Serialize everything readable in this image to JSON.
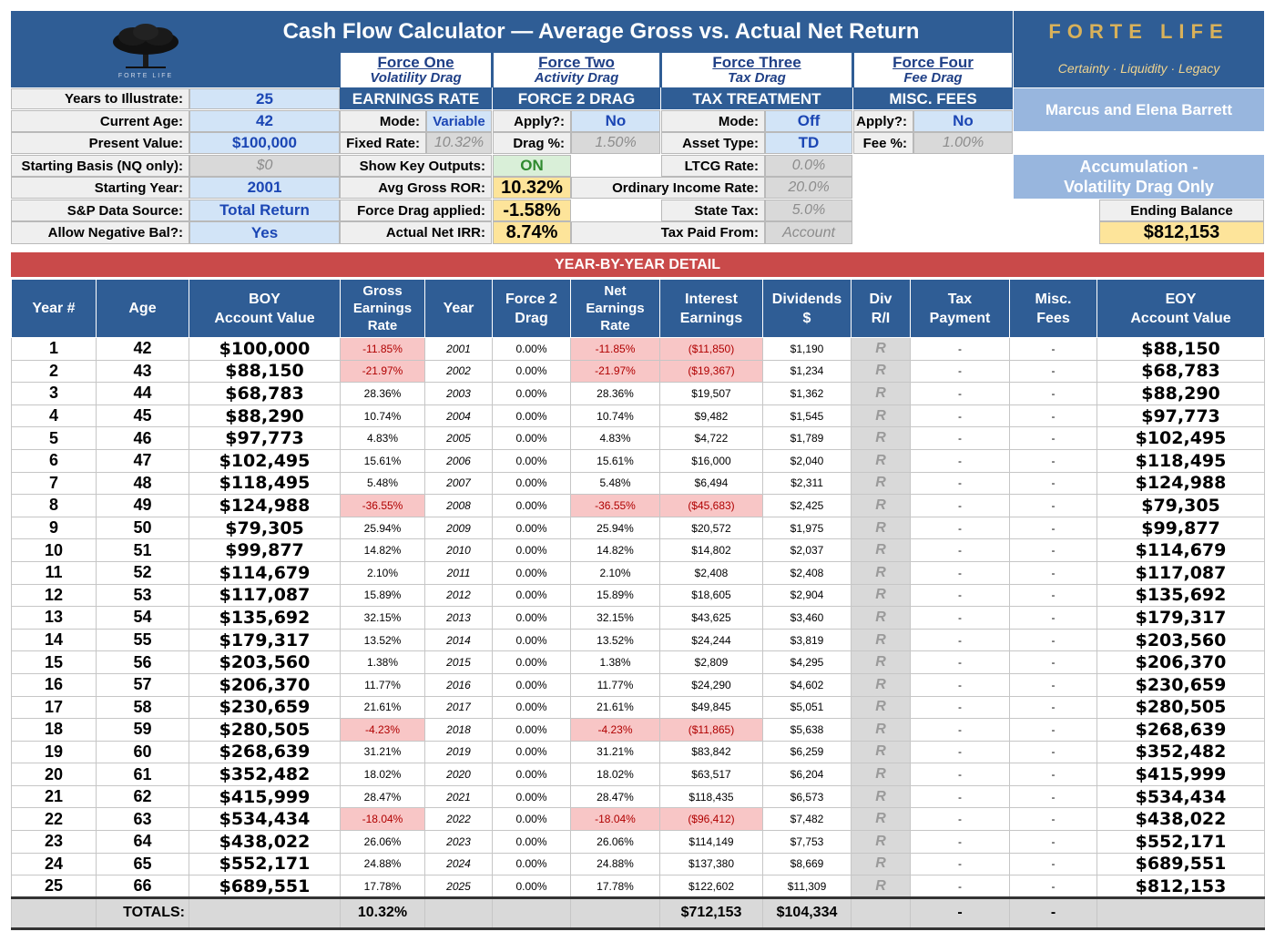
{
  "title": "Cash Flow Calculator — Average Gross vs. Actual Net Return",
  "brand": {
    "name": "FORTE LIFE",
    "tagline": "Certainty · Liquidity · Legacy",
    "logo_text": "FORTE LIFE"
  },
  "client": "Marcus and Elena Barrett",
  "mode_badge": "Accumulation -\nVolatility Drag Only",
  "ending_balance": {
    "label": "Ending Balance",
    "value": "$812,153"
  },
  "inputs": [
    {
      "label": "Years to Illustrate:",
      "value": "25",
      "style": "lightblue"
    },
    {
      "label": "Current Age:",
      "value": "42",
      "style": "lightblue"
    },
    {
      "label": "Present Value:",
      "value": "$100,000",
      "style": "lightblue"
    },
    {
      "label": "Starting Basis (NQ only):",
      "value": "$0",
      "style": "grey"
    },
    {
      "label": "Starting Year:",
      "value": "2001",
      "style": "lightblue"
    },
    {
      "label": "S&P Data Source:",
      "value": "Total Return",
      "style": "lightblue"
    },
    {
      "label": "Allow Negative Bal?:",
      "value": "Yes",
      "style": "lightblue"
    }
  ],
  "forces": [
    {
      "title": "Force One",
      "subtitle": "Volatility Drag",
      "section": "EARNINGS RATE"
    },
    {
      "title": "Force Two",
      "subtitle": "Activity Drag",
      "section": "FORCE 2 DRAG"
    },
    {
      "title": "Force Three",
      "subtitle": "Tax Drag",
      "section": "TAX TREATMENT"
    },
    {
      "title": "Force Four",
      "subtitle": "Fee Drag",
      "section": "MISC. FEES"
    }
  ],
  "force1": {
    "mode_label": "Mode:",
    "mode_value": "Variable",
    "fixed_label": "Fixed Rate:",
    "fixed_value": "10.32%",
    "show_label": "Show Key Outputs:",
    "show_value": "ON",
    "avg_label": "Avg Gross ROR:",
    "avg_value": "10.32%",
    "drag_label": "Force Drag applied:",
    "drag_value": "-1.58%",
    "irr_label": "Actual Net IRR:",
    "irr_value": "8.74%"
  },
  "force2": {
    "apply_label": "Apply?:",
    "apply_value": "No",
    "drag_label": "Drag %:",
    "drag_value": "1.50%"
  },
  "force3": {
    "mode_label": "Mode:",
    "mode_value": "Off",
    "asset_label": "Asset Type:",
    "asset_value": "TD",
    "ltcg_label": "LTCG Rate:",
    "ltcg_value": "0.0%",
    "ord_label": "Ordinary Income Rate:",
    "ord_value": "20.0%",
    "state_label": "State Tax:",
    "state_value": "5.0%",
    "paid_label": "Tax Paid From:",
    "paid_value": "Account"
  },
  "force4": {
    "apply_label": "Apply?:",
    "apply_value": "No",
    "fee_label": "Fee %:",
    "fee_value": "1.00%"
  },
  "detail": {
    "section_title": "YEAR-BY-YEAR DETAIL",
    "headers": [
      "Year #",
      "Age",
      "BOY\nAccount Value",
      "Gross\nEarnings\nRate",
      "Year",
      "Force 2\nDrag",
      "Net\nEarnings\nRate",
      "Interest\nEarnings",
      "Dividends\n$",
      "Div\nR/I",
      "Tax\nPayment",
      "Misc.\nFees",
      "EOY\nAccount Value"
    ],
    "rows": [
      [
        "1",
        "42",
        "$100,000",
        "-11.85%",
        "2001",
        "0.00%",
        "-11.85%",
        "($11,850)",
        "$1,190",
        "R",
        "-",
        "-",
        "$88,150"
      ],
      [
        "2",
        "43",
        "$88,150",
        "-21.97%",
        "2002",
        "0.00%",
        "-21.97%",
        "($19,367)",
        "$1,234",
        "R",
        "-",
        "-",
        "$68,783"
      ],
      [
        "3",
        "44",
        "$68,783",
        "28.36%",
        "2003",
        "0.00%",
        "28.36%",
        "$19,507",
        "$1,362",
        "R",
        "-",
        "-",
        "$88,290"
      ],
      [
        "4",
        "45",
        "$88,290",
        "10.74%",
        "2004",
        "0.00%",
        "10.74%",
        "$9,482",
        "$1,545",
        "R",
        "-",
        "-",
        "$97,773"
      ],
      [
        "5",
        "46",
        "$97,773",
        "4.83%",
        "2005",
        "0.00%",
        "4.83%",
        "$4,722",
        "$1,789",
        "R",
        "-",
        "-",
        "$102,495"
      ],
      [
        "6",
        "47",
        "$102,495",
        "15.61%",
        "2006",
        "0.00%",
        "15.61%",
        "$16,000",
        "$2,040",
        "R",
        "-",
        "-",
        "$118,495"
      ],
      [
        "7",
        "48",
        "$118,495",
        "5.48%",
        "2007",
        "0.00%",
        "5.48%",
        "$6,494",
        "$2,311",
        "R",
        "-",
        "-",
        "$124,988"
      ],
      [
        "8",
        "49",
        "$124,988",
        "-36.55%",
        "2008",
        "0.00%",
        "-36.55%",
        "($45,683)",
        "$2,425",
        "R",
        "-",
        "-",
        "$79,305"
      ],
      [
        "9",
        "50",
        "$79,305",
        "25.94%",
        "2009",
        "0.00%",
        "25.94%",
        "$20,572",
        "$1,975",
        "R",
        "-",
        "-",
        "$99,877"
      ],
      [
        "10",
        "51",
        "$99,877",
        "14.82%",
        "2010",
        "0.00%",
        "14.82%",
        "$14,802",
        "$2,037",
        "R",
        "-",
        "-",
        "$114,679"
      ],
      [
        "11",
        "52",
        "$114,679",
        "2.10%",
        "2011",
        "0.00%",
        "2.10%",
        "$2,408",
        "$2,408",
        "R",
        "-",
        "-",
        "$117,087"
      ],
      [
        "12",
        "53",
        "$117,087",
        "15.89%",
        "2012",
        "0.00%",
        "15.89%",
        "$18,605",
        "$2,904",
        "R",
        "-",
        "-",
        "$135,692"
      ],
      [
        "13",
        "54",
        "$135,692",
        "32.15%",
        "2013",
        "0.00%",
        "32.15%",
        "$43,625",
        "$3,460",
        "R",
        "-",
        "-",
        "$179,317"
      ],
      [
        "14",
        "55",
        "$179,317",
        "13.52%",
        "2014",
        "0.00%",
        "13.52%",
        "$24,244",
        "$3,819",
        "R",
        "-",
        "-",
        "$203,560"
      ],
      [
        "15",
        "56",
        "$203,560",
        "1.38%",
        "2015",
        "0.00%",
        "1.38%",
        "$2,809",
        "$4,295",
        "R",
        "-",
        "-",
        "$206,370"
      ],
      [
        "16",
        "57",
        "$206,370",
        "11.77%",
        "2016",
        "0.00%",
        "11.77%",
        "$24,290",
        "$4,602",
        "R",
        "-",
        "-",
        "$230,659"
      ],
      [
        "17",
        "58",
        "$230,659",
        "21.61%",
        "2017",
        "0.00%",
        "21.61%",
        "$49,845",
        "$5,051",
        "R",
        "-",
        "-",
        "$280,505"
      ],
      [
        "18",
        "59",
        "$280,505",
        "-4.23%",
        "2018",
        "0.00%",
        "-4.23%",
        "($11,865)",
        "$5,638",
        "R",
        "-",
        "-",
        "$268,639"
      ],
      [
        "19",
        "60",
        "$268,639",
        "31.21%",
        "2019",
        "0.00%",
        "31.21%",
        "$83,842",
        "$6,259",
        "R",
        "-",
        "-",
        "$352,482"
      ],
      [
        "20",
        "61",
        "$352,482",
        "18.02%",
        "2020",
        "0.00%",
        "18.02%",
        "$63,517",
        "$6,204",
        "R",
        "-",
        "-",
        "$415,999"
      ],
      [
        "21",
        "62",
        "$415,999",
        "28.47%",
        "2021",
        "0.00%",
        "28.47%",
        "$118,435",
        "$6,573",
        "R",
        "-",
        "-",
        "$534,434"
      ],
      [
        "22",
        "63",
        "$534,434",
        "-18.04%",
        "2022",
        "0.00%",
        "-18.04%",
        "($96,412)",
        "$7,482",
        "R",
        "-",
        "-",
        "$438,022"
      ],
      [
        "23",
        "64",
        "$438,022",
        "26.06%",
        "2023",
        "0.00%",
        "26.06%",
        "$114,149",
        "$7,753",
        "R",
        "-",
        "-",
        "$552,171"
      ],
      [
        "24",
        "65",
        "$552,171",
        "24.88%",
        "2024",
        "0.00%",
        "24.88%",
        "$137,380",
        "$8,669",
        "R",
        "-",
        "-",
        "$689,551"
      ],
      [
        "25",
        "66",
        "$689,551",
        "17.78%",
        "2025",
        "0.00%",
        "17.78%",
        "$122,602",
        "$11,309",
        "R",
        "-",
        "-",
        "$812,153"
      ]
    ],
    "totals": [
      "",
      "TOTALS:",
      "",
      "10.32%",
      "",
      "",
      "",
      "$712,153",
      "$104,334",
      "",
      "-",
      "-",
      ""
    ]
  }
}
